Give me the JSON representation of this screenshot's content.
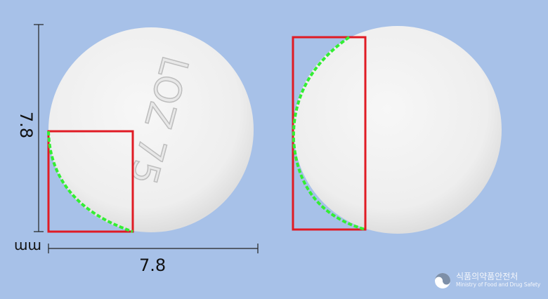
{
  "measurement": {
    "width_label": "7.8",
    "height_label": "7.8",
    "unit_label": "mm"
  },
  "tablet": {
    "imprint": "LOZ 75",
    "color": "#f2f2f2",
    "outline_highlight": "#33ee33",
    "box_color": "#e01b24"
  },
  "watermark": {
    "org_korean": "식품의약품안전처",
    "org_english": "Ministry of Food and Drug Safety"
  }
}
